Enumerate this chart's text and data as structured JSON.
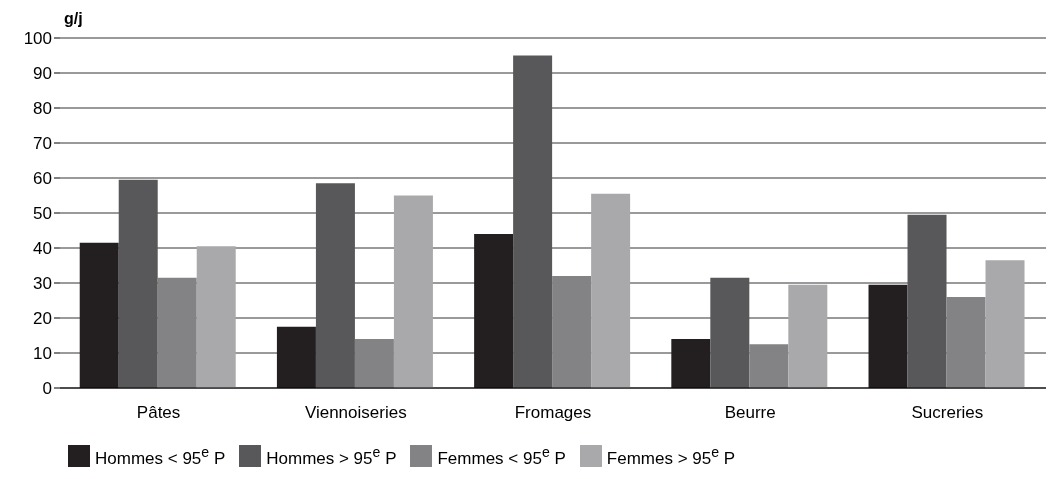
{
  "chart_data": {
    "type": "bar",
    "ylabel": "g/j",
    "categories": [
      "Pâtes",
      "Viennoiseries",
      "Fromages",
      "Beurre",
      "Sucreries"
    ],
    "series": [
      {
        "name": "Hommes < 95$^{e}$ P",
        "color": "#231f20",
        "values": [
          41.5,
          17.5,
          44,
          14,
          29.5
        ]
      },
      {
        "name": "Hommes > 95$^{e}$ P",
        "color": "#58585a",
        "values": [
          59.5,
          58.5,
          95,
          31.5,
          49.5
        ]
      },
      {
        "name": "Femmes < 95$^{e}$ P",
        "color": "#838386",
        "values": [
          31.5,
          14,
          32,
          12.5,
          26
        ]
      },
      {
        "name": "Femmes > 95$^{e}$ P",
        "color": "#a9a9ac",
        "values": [
          40.5,
          55,
          55.5,
          29.5,
          36.5
        ]
      }
    ],
    "ylim": [
      0,
      100
    ],
    "yticks": [
      0,
      10,
      20,
      30,
      40,
      50,
      60,
      70,
      80,
      90,
      100
    ],
    "grid": "y",
    "legend": "bottom"
  }
}
